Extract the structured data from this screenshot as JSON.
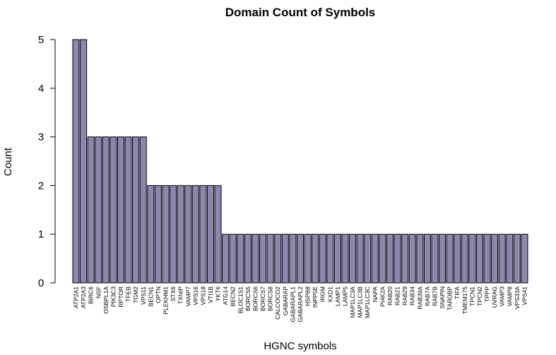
{
  "chart_data": {
    "type": "bar",
    "title": "Domain Count of Symbols",
    "xlabel": "HGNC symbols",
    "ylabel": "Count",
    "ylim": [
      0,
      5
    ],
    "yticks": [
      0,
      1,
      2,
      3,
      4,
      5
    ],
    "bar_color": "#8b87ae",
    "grid": false,
    "categories": [
      "ATP2A1",
      "ATP2A3",
      "BIRC6",
      "NSF",
      "OSBPL1A",
      "PIK3C3",
      "RPTOR",
      "TFEB",
      "TGM2",
      "VPS11",
      "BECN1",
      "OPTN",
      "PLEKHM1",
      "STX6",
      "TXNIP",
      "VAMP7",
      "VPS16",
      "VPS18",
      "VTI1B",
      "YKT6",
      "ATG14",
      "BECN2",
      "BLOC1S1",
      "BORCS5",
      "BORCS6",
      "BORCS7",
      "BORCS8",
      "CALCOCO2",
      "GABARAP",
      "GABARAPL1",
      "GABARAPL2",
      "HSPB8",
      "INPP5E",
      "IRGM",
      "KXD1",
      "LAMP1",
      "LAMP5",
      "MAP1LC3A",
      "MAP1LC3B",
      "MAP1LC3C",
      "NAPA",
      "PI4K2A",
      "RAB20",
      "RAB21",
      "RAB29",
      "RAB34",
      "RAB39A",
      "RAB7A",
      "RAB7B",
      "SNAPIN",
      "TARDBP",
      "TIFA",
      "TMEM175",
      "TPCN1",
      "TPCN2",
      "TPPP",
      "UVRAG",
      "VAMP3",
      "VAMP8",
      "VPS33A",
      "VPS41"
    ],
    "values": [
      5,
      5,
      3,
      3,
      3,
      3,
      3,
      3,
      3,
      3,
      2,
      2,
      2,
      2,
      2,
      2,
      2,
      2,
      2,
      2,
      1,
      1,
      1,
      1,
      1,
      1,
      1,
      1,
      1,
      1,
      1,
      1,
      1,
      1,
      1,
      1,
      1,
      1,
      1,
      1,
      1,
      1,
      1,
      1,
      1,
      1,
      1,
      1,
      1,
      1,
      1,
      1,
      1,
      1,
      1,
      1,
      1,
      1,
      1,
      1,
      1
    ]
  }
}
